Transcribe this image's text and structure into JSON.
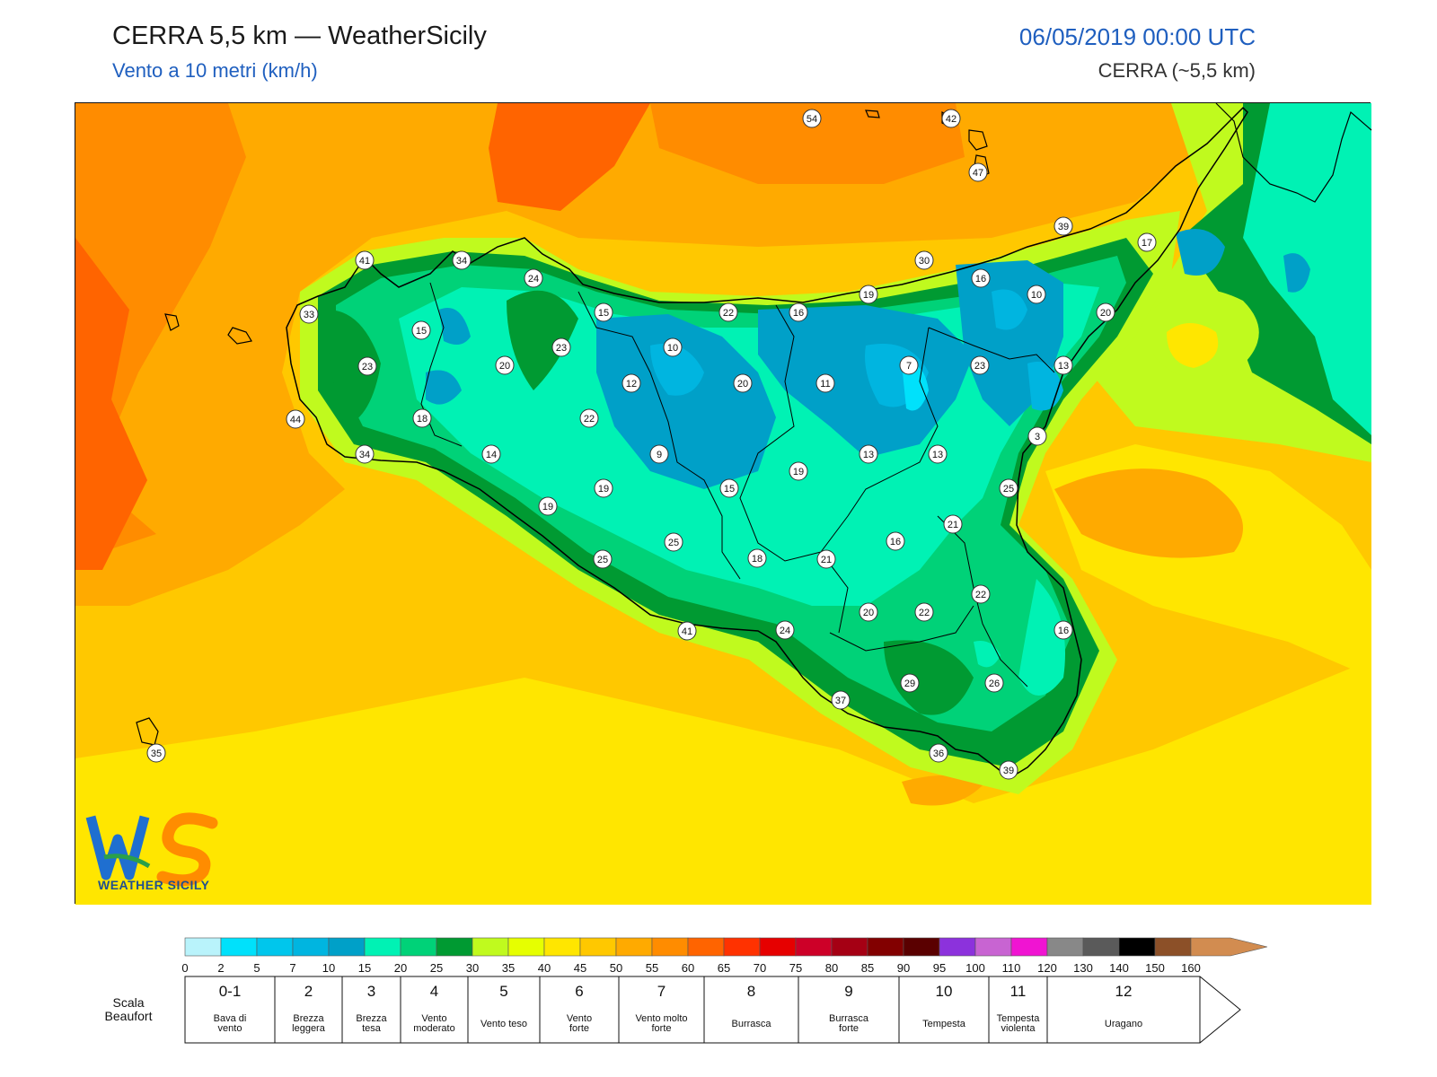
{
  "header": {
    "title": "CERRA 5,5 km — WeatherSicily",
    "subtitle": "Vento a 10 metri (km/h)",
    "datetime": "06/05/2019 00:00 UTC",
    "model": "CERRA (~5,5 km)"
  },
  "logo": {
    "text": "WEATHER SICILY",
    "letters": "WS"
  },
  "map": {
    "stations": [
      {
        "v": "54"
      },
      {
        "v": "42"
      },
      {
        "v": "47"
      },
      {
        "v": "39"
      },
      {
        "v": "17"
      },
      {
        "v": "41"
      },
      {
        "v": "34"
      },
      {
        "v": "24"
      },
      {
        "v": "30"
      },
      {
        "v": "16"
      },
      {
        "v": "10"
      },
      {
        "v": "33"
      },
      {
        "v": "15"
      },
      {
        "v": "15"
      },
      {
        "v": "22"
      },
      {
        "v": "16"
      },
      {
        "v": "19"
      },
      {
        "v": "20"
      },
      {
        "v": "23"
      },
      {
        "v": "20"
      },
      {
        "v": "23"
      },
      {
        "v": "10"
      },
      {
        "v": "7"
      },
      {
        "v": "23"
      },
      {
        "v": "13"
      },
      {
        "v": "12"
      },
      {
        "v": "20"
      },
      {
        "v": "11"
      },
      {
        "v": "44"
      },
      {
        "v": "18"
      },
      {
        "v": "22"
      },
      {
        "v": "3"
      },
      {
        "v": "34"
      },
      {
        "v": "14"
      },
      {
        "v": "9"
      },
      {
        "v": "13"
      },
      {
        "v": "13"
      },
      {
        "v": "19"
      },
      {
        "v": "25"
      },
      {
        "v": "19"
      },
      {
        "v": "15"
      },
      {
        "v": "19"
      },
      {
        "v": "21"
      },
      {
        "v": "25"
      },
      {
        "v": "16"
      },
      {
        "v": "25"
      },
      {
        "v": "18"
      },
      {
        "v": "21"
      },
      {
        "v": "22"
      },
      {
        "v": "41"
      },
      {
        "v": "24"
      },
      {
        "v": "20"
      },
      {
        "v": "22"
      },
      {
        "v": "16"
      },
      {
        "v": "29"
      },
      {
        "v": "26"
      },
      {
        "v": "37"
      },
      {
        "v": "35"
      },
      {
        "v": "36"
      },
      {
        "v": "39"
      }
    ]
  },
  "colorbar": {
    "ticks": [
      "0",
      "2",
      "5",
      "7",
      "10",
      "15",
      "20",
      "25",
      "30",
      "35",
      "40",
      "45",
      "50",
      "55",
      "60",
      "65",
      "70",
      "75",
      "80",
      "85",
      "90",
      "95",
      "100",
      "110",
      "120",
      "130",
      "140",
      "150",
      "160"
    ],
    "colors": [
      "#b9f3fb",
      "#00e1fb",
      "#00c6ec",
      "#00b5e0",
      "#00a0c8",
      "#00f2b4",
      "#00d278",
      "#009a32",
      "#c0fa1e",
      "#e6ff00",
      "#ffe600",
      "#ffc800",
      "#ffaa00",
      "#ff8c00",
      "#ff6400",
      "#ff3200",
      "#e60000",
      "#cd0028",
      "#a50014",
      "#820000",
      "#5a0000",
      "#8c32dc",
      "#c864d2",
      "#f014d2",
      "#888888",
      "#5a5a5a",
      "#000000",
      "#8c5028",
      "#d28c50"
    ]
  },
  "beaufort": {
    "title": "Scala\nBeaufort",
    "cells": [
      {
        "n": "0-1",
        "label": "Bava di vento"
      },
      {
        "n": "2",
        "label": "Brezza leggera"
      },
      {
        "n": "3",
        "label": "Brezza tesa"
      },
      {
        "n": "4",
        "label": "Vento moderato"
      },
      {
        "n": "5",
        "label": "Vento teso"
      },
      {
        "n": "6",
        "label": "Vento forte"
      },
      {
        "n": "7",
        "label": "Vento molto forte"
      },
      {
        "n": "8",
        "label": "Burrasca"
      },
      {
        "n": "9",
        "label": "Burrasca forte"
      },
      {
        "n": "10",
        "label": "Tempesta"
      },
      {
        "n": "11",
        "label": "Tempesta violenta"
      },
      {
        "n": "12",
        "label": "Uragano"
      }
    ]
  }
}
